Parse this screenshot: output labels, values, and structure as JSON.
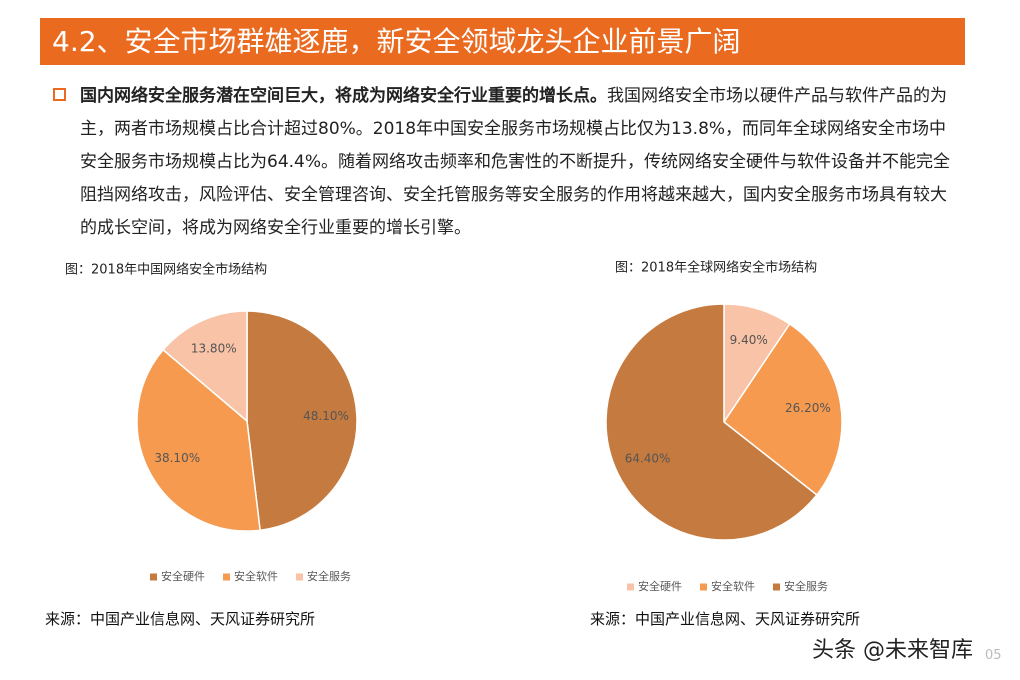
{
  "header": {
    "title": "4.2、安全市场群雄逐鹿，新安全领域龙头企业前景广阔"
  },
  "paragraph": {
    "lead": "国内网络安全服务潜在空间巨大，将成为网络安全行业重要的增长点。",
    "body": "我国网络安全市场以硬件产品与软件产品的为主，两者市场规模占比合计超过80%。2018年中国安全服务市场规模占比仅为13.8%，而同年全球网络安全市场中安全服务市场规模占比为64.4%。随着网络攻击频率和危害性的不断提升，传统网络安全硬件与软件设备并不能完全阻挡网络攻击，风险评估、安全管理咨询、安全托管服务等安全服务的作用将越来越大，国内安全服务市场具有较大的成长空间，将成为网络安全行业重要的增长引擎。"
  },
  "chart_data": [
    {
      "type": "pie",
      "title": "图：2018年中国网络安全市场结构",
      "categories": [
        "安全硬件",
        "安全软件",
        "安全服务"
      ],
      "values": [
        48.1,
        38.1,
        13.8
      ],
      "value_labels": [
        "48.10%",
        "38.10%",
        "13.80%"
      ],
      "colors": [
        "#c57a3f",
        "#f59a4f",
        "#f8c3a6"
      ]
    },
    {
      "type": "pie",
      "title": "图：2018年全球网络安全市场结构",
      "categories": [
        "安全硬件",
        "安全软件",
        "安全服务"
      ],
      "values": [
        9.4,
        26.2,
        64.4
      ],
      "value_labels": [
        "9.40%",
        "26.20%",
        "64.40%"
      ],
      "colors": [
        "#f8c3a6",
        "#f59a4f",
        "#c57a3f"
      ]
    }
  ],
  "sources": [
    "来源：中国产业信息网、天风证券研究所",
    "来源：中国产业信息网、天风证券研究所"
  ],
  "watermark": "头条 @未来智库",
  "page_number": "05"
}
